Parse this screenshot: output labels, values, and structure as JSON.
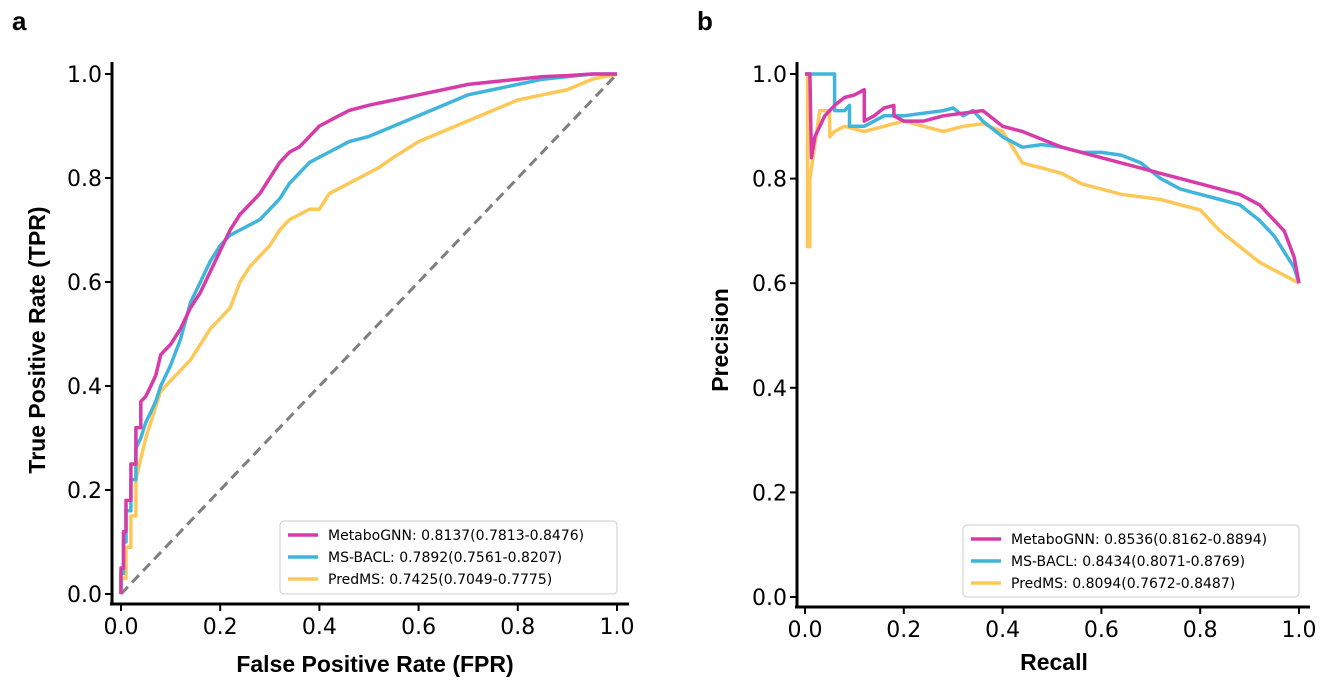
{
  "figure": {
    "colors": {
      "MetaboGNN": "#d63ba9",
      "MS-BACL": "#3fb5dc",
      "PredMS": "#fdc858",
      "diagonal": "#7f7f7f"
    }
  },
  "chart_data": [
    {
      "panel": "a",
      "type": "line",
      "title": "",
      "xlabel": "False Positive Rate (FPR)",
      "ylabel": "True Positive Rate (TPR)",
      "xlim": [
        0,
        1
      ],
      "ylim": [
        0,
        1
      ],
      "xticks": [
        "0.0",
        "0.2",
        "0.4",
        "0.6",
        "0.8",
        "1.0"
      ],
      "yticks": [
        "0.0",
        "0.2",
        "0.4",
        "0.6",
        "0.8",
        "1.0"
      ],
      "grid": false,
      "legend_position": "lower-right",
      "reference_line": {
        "style": "dashed",
        "x": [
          0,
          1
        ],
        "y": [
          0,
          1
        ]
      },
      "series": [
        {
          "name": "MetaboGNN: 0.8137(0.7813-0.8476)",
          "x": [
            0.0,
            0.0,
            0.005,
            0.005,
            0.01,
            0.01,
            0.02,
            0.02,
            0.03,
            0.03,
            0.04,
            0.04,
            0.05,
            0.06,
            0.07,
            0.08,
            0.09,
            0.1,
            0.12,
            0.14,
            0.16,
            0.18,
            0.2,
            0.22,
            0.24,
            0.26,
            0.28,
            0.3,
            0.32,
            0.34,
            0.36,
            0.38,
            0.4,
            0.42,
            0.44,
            0.46,
            0.5,
            0.55,
            0.6,
            0.65,
            0.7,
            0.75,
            0.8,
            0.85,
            0.9,
            0.95,
            1.0
          ],
          "y": [
            0.0,
            0.05,
            0.05,
            0.12,
            0.12,
            0.18,
            0.18,
            0.25,
            0.25,
            0.32,
            0.32,
            0.37,
            0.38,
            0.4,
            0.42,
            0.46,
            0.47,
            0.48,
            0.51,
            0.55,
            0.58,
            0.62,
            0.66,
            0.7,
            0.73,
            0.75,
            0.77,
            0.8,
            0.83,
            0.85,
            0.86,
            0.88,
            0.9,
            0.91,
            0.92,
            0.93,
            0.94,
            0.95,
            0.96,
            0.97,
            0.98,
            0.985,
            0.99,
            0.995,
            0.997,
            1.0,
            1.0
          ]
        },
        {
          "name": "MS-BACL: 0.7892(0.7561-0.8207)",
          "x": [
            0.0,
            0.0,
            0.005,
            0.005,
            0.01,
            0.01,
            0.02,
            0.02,
            0.03,
            0.03,
            0.04,
            0.05,
            0.06,
            0.07,
            0.08,
            0.1,
            0.12,
            0.14,
            0.16,
            0.18,
            0.2,
            0.22,
            0.24,
            0.26,
            0.28,
            0.3,
            0.32,
            0.34,
            0.36,
            0.38,
            0.4,
            0.42,
            0.44,
            0.46,
            0.5,
            0.55,
            0.6,
            0.65,
            0.7,
            0.75,
            0.8,
            0.85,
            0.9,
            0.95,
            1.0
          ],
          "y": [
            0.0,
            0.04,
            0.04,
            0.1,
            0.1,
            0.16,
            0.16,
            0.22,
            0.22,
            0.28,
            0.3,
            0.33,
            0.35,
            0.37,
            0.4,
            0.44,
            0.49,
            0.56,
            0.6,
            0.64,
            0.67,
            0.69,
            0.7,
            0.71,
            0.72,
            0.74,
            0.76,
            0.79,
            0.81,
            0.83,
            0.84,
            0.85,
            0.86,
            0.87,
            0.88,
            0.9,
            0.92,
            0.94,
            0.96,
            0.97,
            0.98,
            0.99,
            0.995,
            1.0,
            1.0
          ]
        },
        {
          "name": "PredMS: 0.7425(0.7049-0.7775)",
          "x": [
            0.0,
            0.0,
            0.01,
            0.01,
            0.02,
            0.02,
            0.03,
            0.03,
            0.04,
            0.05,
            0.06,
            0.07,
            0.08,
            0.1,
            0.12,
            0.14,
            0.16,
            0.18,
            0.2,
            0.22,
            0.24,
            0.26,
            0.28,
            0.3,
            0.32,
            0.34,
            0.36,
            0.38,
            0.4,
            0.42,
            0.44,
            0.46,
            0.48,
            0.5,
            0.52,
            0.55,
            0.6,
            0.65,
            0.7,
            0.75,
            0.8,
            0.85,
            0.9,
            0.95,
            1.0
          ],
          "y": [
            0.0,
            0.03,
            0.03,
            0.09,
            0.09,
            0.15,
            0.15,
            0.22,
            0.26,
            0.3,
            0.33,
            0.36,
            0.39,
            0.41,
            0.43,
            0.45,
            0.48,
            0.51,
            0.53,
            0.55,
            0.6,
            0.63,
            0.65,
            0.67,
            0.7,
            0.72,
            0.73,
            0.74,
            0.74,
            0.77,
            0.78,
            0.79,
            0.8,
            0.81,
            0.82,
            0.84,
            0.87,
            0.89,
            0.91,
            0.93,
            0.95,
            0.96,
            0.97,
            0.99,
            1.0
          ]
        }
      ]
    },
    {
      "panel": "b",
      "type": "line",
      "title": "",
      "xlabel": "Recall",
      "ylabel": "Precision",
      "xlim": [
        0,
        1
      ],
      "ylim": [
        0,
        1
      ],
      "xticks": [
        "0.0",
        "0.2",
        "0.4",
        "0.6",
        "0.8",
        "1.0"
      ],
      "yticks": [
        "0.0",
        "0.2",
        "0.4",
        "0.6",
        "0.8",
        "1.0"
      ],
      "grid": false,
      "legend_position": "lower-right",
      "series": [
        {
          "name": "MetaboGNN: 0.8536(0.8162-0.8894)",
          "x": [
            0.0,
            0.01,
            0.013,
            0.02,
            0.04,
            0.06,
            0.08,
            0.1,
            0.12,
            0.12,
            0.14,
            0.16,
            0.18,
            0.18,
            0.2,
            0.24,
            0.28,
            0.32,
            0.36,
            0.4,
            0.44,
            0.48,
            0.52,
            0.56,
            0.6,
            0.64,
            0.68,
            0.72,
            0.76,
            0.8,
            0.84,
            0.88,
            0.92,
            0.95,
            0.97,
            0.99,
            1.0
          ],
          "y": [
            1.0,
            1.0,
            0.84,
            0.88,
            0.92,
            0.94,
            0.955,
            0.96,
            0.97,
            0.91,
            0.92,
            0.935,
            0.94,
            0.92,
            0.91,
            0.91,
            0.92,
            0.925,
            0.93,
            0.9,
            0.89,
            0.875,
            0.86,
            0.85,
            0.84,
            0.83,
            0.82,
            0.81,
            0.8,
            0.79,
            0.78,
            0.77,
            0.75,
            0.72,
            0.7,
            0.65,
            0.6
          ]
        },
        {
          "name": "MS-BACL: 0.8434(0.8071-0.8769)",
          "x": [
            0.0,
            0.06,
            0.06,
            0.08,
            0.09,
            0.09,
            0.12,
            0.16,
            0.2,
            0.24,
            0.28,
            0.3,
            0.32,
            0.34,
            0.36,
            0.4,
            0.44,
            0.48,
            0.52,
            0.56,
            0.6,
            0.64,
            0.68,
            0.72,
            0.76,
            0.8,
            0.84,
            0.88,
            0.92,
            0.95,
            0.97,
            0.99,
            1.0
          ],
          "y": [
            1.0,
            1.0,
            0.93,
            0.93,
            0.94,
            0.9,
            0.9,
            0.92,
            0.92,
            0.925,
            0.93,
            0.935,
            0.92,
            0.93,
            0.91,
            0.88,
            0.86,
            0.865,
            0.86,
            0.85,
            0.85,
            0.845,
            0.83,
            0.8,
            0.78,
            0.77,
            0.76,
            0.75,
            0.72,
            0.69,
            0.66,
            0.63,
            0.6
          ]
        },
        {
          "name": "PredMS: 0.8094(0.7672-0.8487)",
          "x": [
            0.0,
            0.005,
            0.005,
            0.01,
            0.01,
            0.03,
            0.05,
            0.05,
            0.06,
            0.08,
            0.1,
            0.12,
            0.16,
            0.2,
            0.24,
            0.28,
            0.32,
            0.36,
            0.4,
            0.44,
            0.48,
            0.52,
            0.56,
            0.6,
            0.64,
            0.68,
            0.72,
            0.76,
            0.8,
            0.84,
            0.88,
            0.92,
            0.96,
            1.0
          ],
          "y": [
            1.0,
            1.0,
            0.67,
            0.67,
            0.8,
            0.93,
            0.93,
            0.88,
            0.89,
            0.9,
            0.895,
            0.89,
            0.9,
            0.91,
            0.9,
            0.89,
            0.9,
            0.905,
            0.89,
            0.83,
            0.82,
            0.81,
            0.79,
            0.78,
            0.77,
            0.765,
            0.76,
            0.75,
            0.74,
            0.7,
            0.67,
            0.64,
            0.62,
            0.6
          ]
        }
      ]
    }
  ]
}
